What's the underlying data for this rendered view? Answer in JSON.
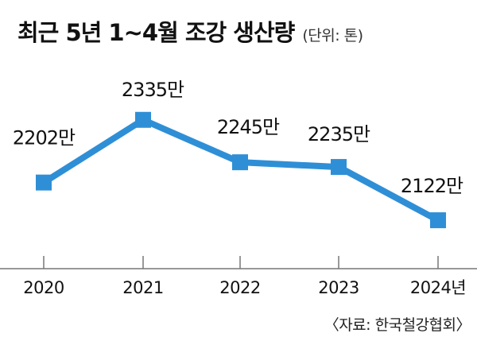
{
  "title": "최근 5년 1~4월 조강 생산량",
  "unit_note": "(단위: 톤)",
  "source": "〈자료: 한국철강협회〉",
  "colors": {
    "line": "#2f8fd6",
    "marker": "#2f8fd6",
    "axis": "#777777",
    "text": "#111111"
  },
  "chart_data": {
    "type": "line",
    "categories": [
      "2020",
      "2021",
      "2022",
      "2023",
      "2024년"
    ],
    "series": [
      {
        "values": [
          2202,
          2335,
          2245,
          2235,
          2122
        ],
        "data_labels": [
          "2202만",
          "2335만",
          "2245만",
          "2235만",
          "2122만"
        ]
      }
    ],
    "grid": false,
    "legend": "none"
  }
}
